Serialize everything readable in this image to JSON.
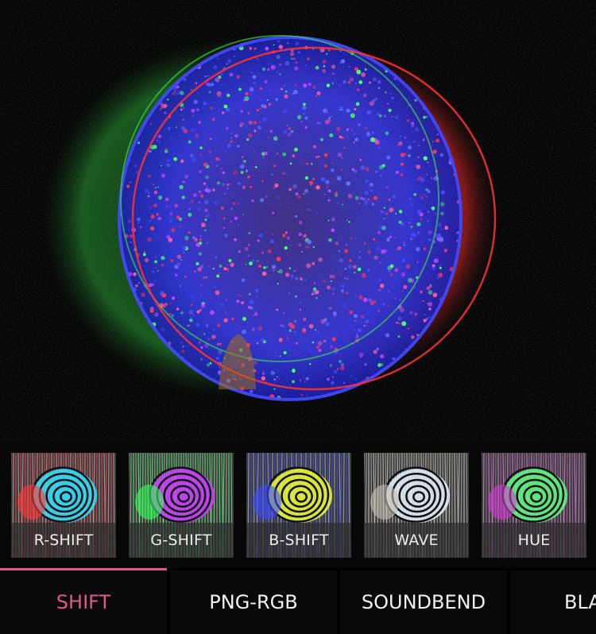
{
  "colors": {
    "accent": "#e0578e",
    "text": "#f2f2f2",
    "background": "#000000"
  },
  "preview": {
    "icon": "rgb-split-shell-image"
  },
  "filters": [
    {
      "label": "R-SHIFT",
      "tint": "#ff3a3a",
      "glow": "#30e6ff"
    },
    {
      "label": "G-SHIFT",
      "tint": "#38ff5a",
      "glow": "#d040ff"
    },
    {
      "label": "B-SHIFT",
      "tint": "#3c4dff",
      "glow": "#f2ff30"
    },
    {
      "label": "WAVE",
      "tint": "#c8c0b4",
      "glow": "#e8f4ff"
    },
    {
      "label": "HUE",
      "tint": "#d040d0",
      "glow": "#60ff80"
    }
  ],
  "tabs": [
    {
      "label": "SHIFT",
      "active": true
    },
    {
      "label": "PNG-RGB",
      "active": false
    },
    {
      "label": "SOUNDBEND",
      "active": false
    },
    {
      "label": "BLA",
      "active": false
    }
  ]
}
